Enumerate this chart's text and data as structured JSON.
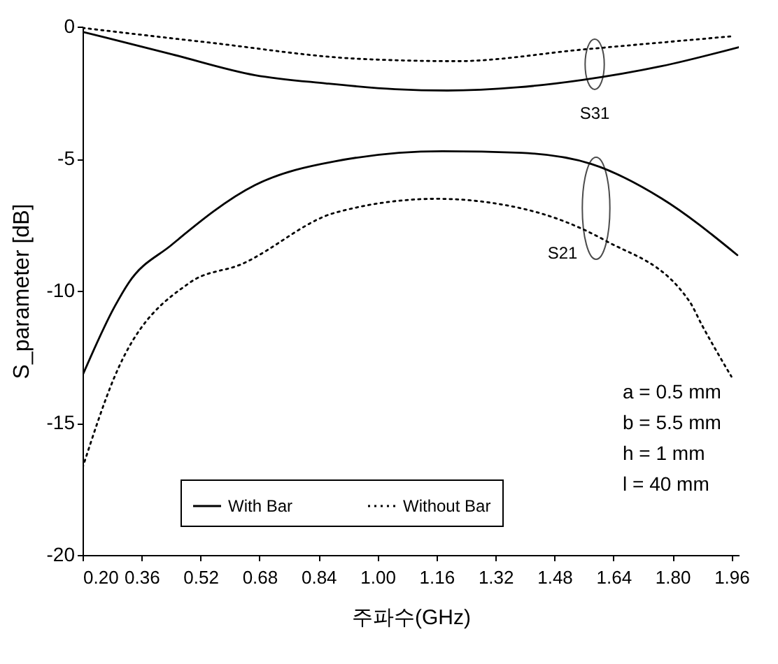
{
  "chart_data": {
    "type": "line",
    "xlabel": "주파수(GHz)",
    "ylabel": "S_parameter [dB]",
    "xlim": [
      0.2,
      1.98
    ],
    "ylim": [
      -20,
      0
    ],
    "xticks": [
      {
        "value": 0.2,
        "label": "0.20"
      },
      {
        "value": 0.36,
        "label": "0.36"
      },
      {
        "value": 0.52,
        "label": "0.52"
      },
      {
        "value": 0.68,
        "label": "0.68"
      },
      {
        "value": 0.84,
        "label": "0.84"
      },
      {
        "value": 1.0,
        "label": "1.00"
      },
      {
        "value": 1.16,
        "label": "1.16"
      },
      {
        "value": 1.32,
        "label": "1.32"
      },
      {
        "value": 1.48,
        "label": "1.48"
      },
      {
        "value": 1.64,
        "label": "1.64"
      },
      {
        "value": 1.8,
        "label": "1.80"
      },
      {
        "value": 1.96,
        "label": "1.96"
      }
    ],
    "yticks": [
      -20,
      -15,
      -10,
      -5,
      0
    ],
    "grid": false,
    "legend": "bottom",
    "marker": "none",
    "series": [
      {
        "name": "With Bar",
        "color": "#000000",
        "line_style": "solid",
        "x": [
          0.2,
          0.44,
          0.668,
          0.86,
          1.048,
          1.19,
          1.38,
          1.556,
          1.77,
          1.98
        ],
        "values": [
          -0.2,
          -1.04,
          -1.84,
          -2.15,
          -2.37,
          -2.42,
          -2.3,
          -2.02,
          -1.5,
          -0.78
        ]
      },
      {
        "name": "Without Bar",
        "color": "#000000",
        "line_style": "dotted",
        "x": [
          0.2,
          0.54,
          0.948,
          1.214,
          1.556,
          1.96
        ],
        "values": [
          -0.05,
          -0.6,
          -1.22,
          -1.31,
          -0.87,
          -0.37
        ]
      },
      {
        "color": "#000000",
        "line_style": "solid",
        "x": [
          0.2,
          0.287,
          0.325,
          0.44,
          0.668,
          0.884,
          1.176,
          1.39,
          1.58,
          1.77,
          1.976
        ],
        "values": [
          -13.2,
          -10.6,
          -9.7,
          -8.28,
          -6.0,
          -5.1,
          -4.72,
          -4.78,
          -5.2,
          -6.5,
          -8.65
        ]
      },
      {
        "color": "#000000",
        "line_style": "dotted",
        "x": [
          0.2,
          0.287,
          0.49,
          0.63,
          0.884,
          1.16,
          1.39,
          1.618,
          1.846,
          1.88,
          1.96
        ],
        "values": [
          -16.7,
          -13.25,
          -9.7,
          -9.0,
          -7.05,
          -6.52,
          -6.88,
          -8.1,
          -10.4,
          -11.3,
          -13.25
        ]
      }
    ],
    "annotations": [
      "S31",
      "S21",
      "a = 0.5 mm",
      "b = 5.5 mm",
      "h = 1 mm",
      "l = 40 mm"
    ]
  }
}
